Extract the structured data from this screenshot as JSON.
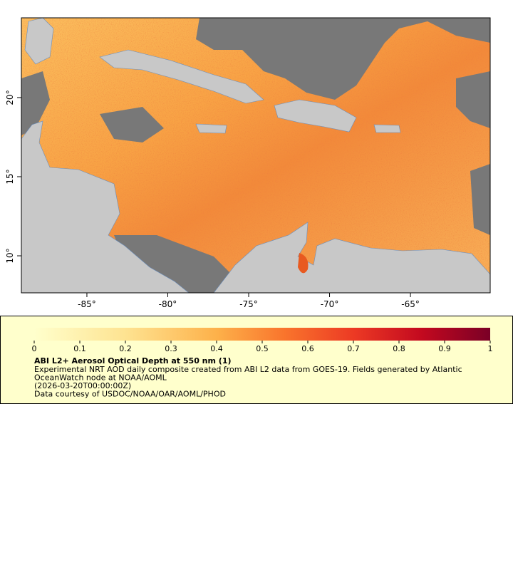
{
  "map": {
    "xlim": [
      -89.05,
      -60.07
    ],
    "ylim": [
      7.66,
      25.04
    ],
    "xticks": [
      {
        "value": -85,
        "label": "-85°"
      },
      {
        "value": -80,
        "label": "-80°"
      },
      {
        "value": -75,
        "label": "-75°"
      },
      {
        "value": -70,
        "label": "-70°"
      },
      {
        "value": -65,
        "label": "-65°"
      }
    ],
    "yticks": [
      {
        "value": 10,
        "label": "10°"
      },
      {
        "value": 15,
        "label": "15°"
      },
      {
        "value": 20,
        "label": "20°"
      }
    ]
  },
  "colorbar": {
    "range": [
      0,
      1
    ],
    "ticks": [
      0,
      0.1,
      0.2,
      0.3,
      0.4,
      0.5,
      0.6,
      0.7,
      0.8,
      0.9,
      1
    ]
  },
  "legend": {
    "title": "ABI L2+ Aerosol Optical Depth at 550 nm (1)",
    "lines": [
      "Experimental NRT AOD daily composite created from ABI L2 data from GOES-19. Fields generated by Atlantic",
      "OceanWatch node at NOAA/AOML",
      "(2026-03-20T00:00:00Z)",
      "Data courtesy of USDOC/NOAA/OAR/AOML/PHOD"
    ]
  }
}
